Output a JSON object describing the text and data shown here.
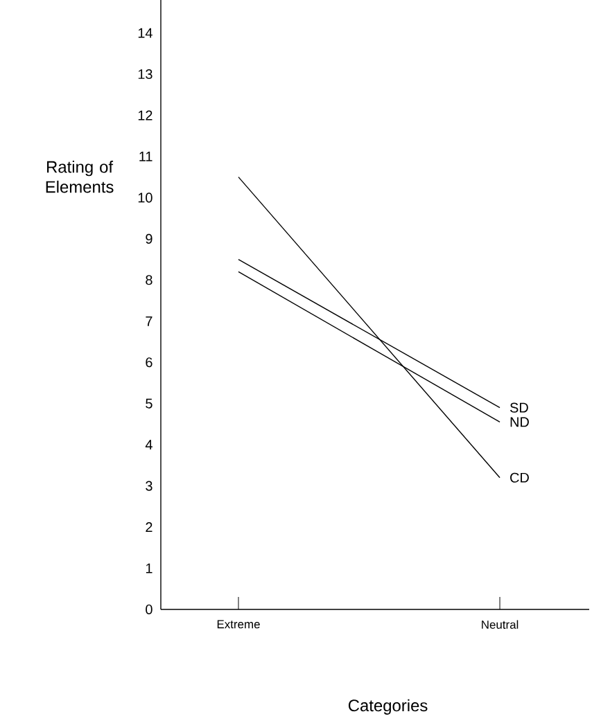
{
  "chart_data": {
    "type": "line",
    "xlabel": "Categories",
    "ylabel": "Rating of Elements",
    "categories": [
      "Extreme",
      "Neutral"
    ],
    "series": [
      {
        "name": "SD",
        "color": "#000000",
        "values": [
          8.5,
          4.9
        ]
      },
      {
        "name": "ND",
        "color": "#000000",
        "values": [
          8.2,
          4.55
        ]
      },
      {
        "name": "CD",
        "color": "#000000",
        "values": [
          10.5,
          3.2
        ]
      }
    ],
    "ylim": [
      0,
      14.8
    ],
    "yticks": [
      0,
      1,
      2,
      3,
      4,
      5,
      6,
      7,
      8,
      9,
      10,
      11,
      12,
      13,
      14
    ],
    "grid": false,
    "marker": "none",
    "line_style": "solid"
  }
}
